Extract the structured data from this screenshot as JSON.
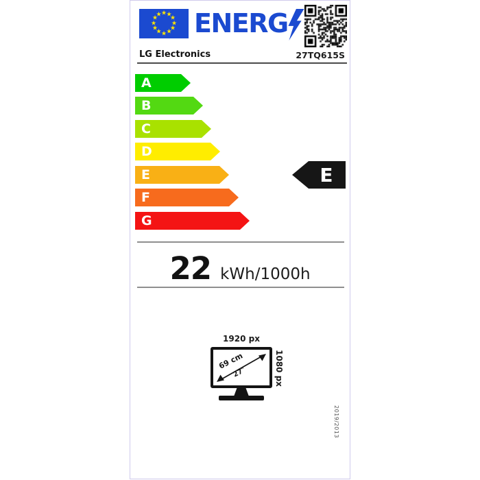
{
  "energy_label": {
    "logo": {
      "text": "ENERG"
    },
    "supplier": "LG Electronics",
    "model": "27TQ615S",
    "classes": [
      {
        "letter": "A",
        "color": "#00cd00"
      },
      {
        "letter": "B",
        "color": "#53d912"
      },
      {
        "letter": "C",
        "color": "#a9e100"
      },
      {
        "letter": "D",
        "color": "#ffed00"
      },
      {
        "letter": "E",
        "color": "#f9b015"
      },
      {
        "letter": "F",
        "color": "#f76b1d"
      },
      {
        "letter": "G",
        "color": "#f41414"
      }
    ],
    "rated_class": "E",
    "consumption": {
      "value": "22",
      "unit": "kWh/1000h"
    },
    "screen": {
      "horizontal_resolution": "1920 px",
      "vertical_resolution": "1080 px",
      "diagonal_cm": "69 cm",
      "diagonal_inch": "27″"
    },
    "regulation": "2019/2013",
    "colors": {
      "accent_blue": "#1b4ad0",
      "star_yellow": "#ffe600",
      "indicator_black": "#161616"
    }
  }
}
